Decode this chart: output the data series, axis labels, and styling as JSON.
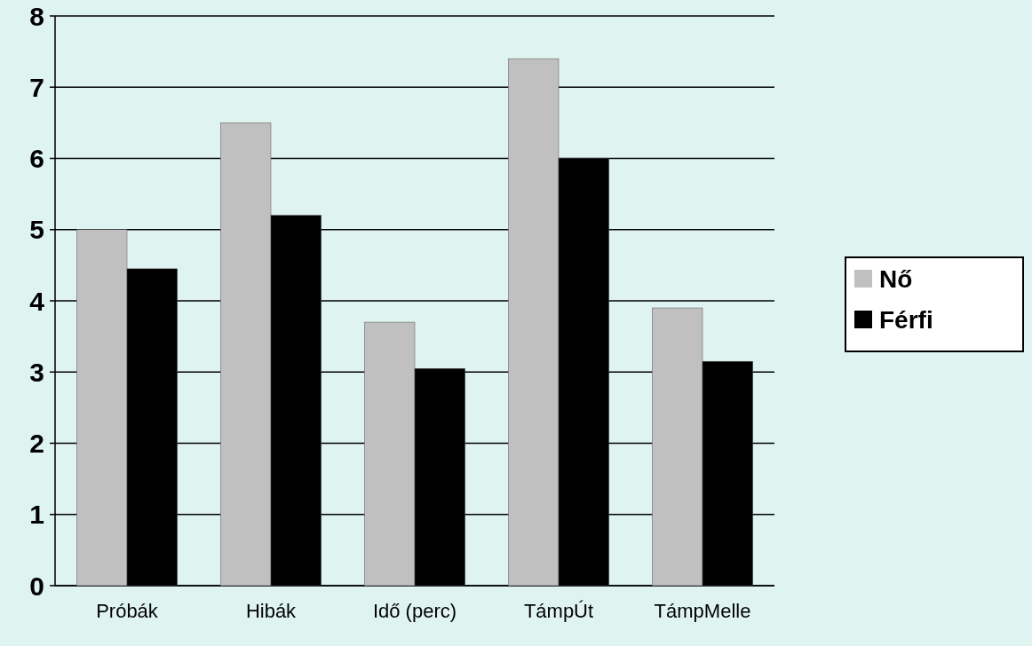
{
  "chart_data": {
    "type": "bar",
    "categories": [
      "Próbák",
      "Hibák",
      "Idő (perc)",
      "TámpÚt",
      "TámpMelle"
    ],
    "series": [
      {
        "name": "Nő",
        "color": "#c0c0c0",
        "values": [
          5.0,
          6.5,
          3.7,
          7.4,
          3.9
        ]
      },
      {
        "name": "Férfi",
        "color": "#000000",
        "values": [
          4.45,
          5.2,
          3.05,
          6.0,
          3.15
        ]
      }
    ],
    "ylim": [
      0,
      8
    ],
    "yticks": [
      0,
      1,
      2,
      3,
      4,
      5,
      6,
      7,
      8
    ],
    "grid": "y",
    "legend": "right"
  }
}
